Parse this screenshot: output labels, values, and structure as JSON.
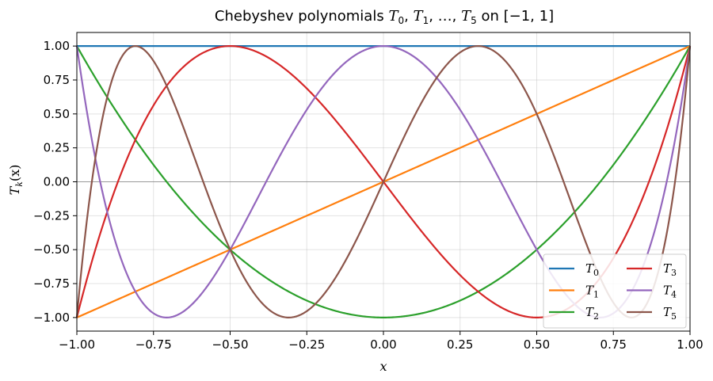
{
  "chart_data": {
    "type": "line",
    "title_parts": {
      "prefix": "Chebyshev polynomials ",
      "math": "T",
      "subs": [
        "0",
        "1",
        "5"
      ],
      "ellipsis": "…",
      "suffix": " on [−1, 1]"
    },
    "xlabel": "x",
    "ylabel": {
      "base": "T",
      "sub": "k",
      "arg": "(x)"
    },
    "xlim": [
      -1,
      1
    ],
    "ylim": [
      -1.1,
      1.1
    ],
    "x_ticks": [
      -1.0,
      -0.75,
      -0.5,
      -0.25,
      0.0,
      0.25,
      0.5,
      0.75,
      1.0
    ],
    "x_tick_labels": [
      "−1.00",
      "−0.75",
      "−0.50",
      "−0.25",
      "0.00",
      "0.25",
      "0.50",
      "0.75",
      "1.00"
    ],
    "y_ticks": [
      1.0,
      0.75,
      0.5,
      0.25,
      0.0,
      -0.25,
      -0.5,
      -0.75,
      -1.0
    ],
    "y_tick_labels": [
      "1.00",
      "0.75",
      "0.50",
      "0.25",
      "0.00",
      "−0.25",
      "−0.50",
      "−0.75",
      "−1.00"
    ],
    "grid": true,
    "zero_line": true,
    "legend_position": "lower-right",
    "legend_columns": 2,
    "series": [
      {
        "name": "T",
        "sub": "0",
        "degree": 0,
        "color": "#1f77b4"
      },
      {
        "name": "T",
        "sub": "1",
        "degree": 1,
        "color": "#ff7f0e"
      },
      {
        "name": "T",
        "sub": "2",
        "degree": 2,
        "color": "#2ca02c"
      },
      {
        "name": "T",
        "sub": "3",
        "degree": 3,
        "color": "#d62728"
      },
      {
        "name": "T",
        "sub": "4",
        "degree": 4,
        "color": "#9467bd"
      },
      {
        "name": "T",
        "sub": "5",
        "degree": 5,
        "color": "#8c564b"
      }
    ]
  }
}
